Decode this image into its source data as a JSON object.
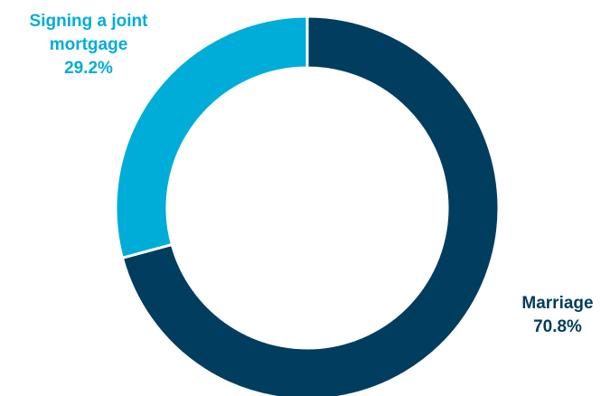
{
  "chart_data": {
    "type": "pie",
    "title": "",
    "donut": true,
    "legend": "none",
    "slices": [
      {
        "label_lines": [
          "Marriage"
        ],
        "value_label": "70.8%",
        "value": 70.8,
        "color": "#003D5E"
      },
      {
        "label_lines": [
          "Signing a joint",
          "mortgage"
        ],
        "value_label": "29.2%",
        "value": 29.2,
        "color": "#00ADD8"
      }
    ],
    "separator_color": "#ffffff"
  }
}
